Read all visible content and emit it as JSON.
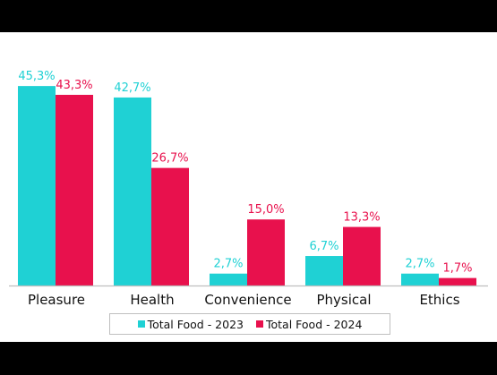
{
  "chart_data": {
    "type": "bar",
    "categories": [
      "Pleasure",
      "Health",
      "Convenience",
      "Physical",
      "Ethics"
    ],
    "series": [
      {
        "name": "Total Food - 2023",
        "values": [
          45.3,
          42.7,
          2.7,
          6.7,
          2.7
        ],
        "labels": [
          "45,3%",
          "42,7%",
          "2,7%",
          "6,7%",
          "2,7%"
        ],
        "color": "#1fd1d4"
      },
      {
        "name": "Total Food - 2024",
        "values": [
          43.3,
          26.7,
          15.0,
          13.3,
          1.7
        ],
        "labels": [
          "43,3%",
          "26,7%",
          "15,0%",
          "13,3%",
          "1,7%"
        ],
        "color": "#e8114d"
      }
    ],
    "ylim": [
      0,
      50
    ],
    "grid": false,
    "legend_position": "bottom"
  },
  "colors": {
    "axis": "#bfbfbf",
    "text": "#111111"
  }
}
